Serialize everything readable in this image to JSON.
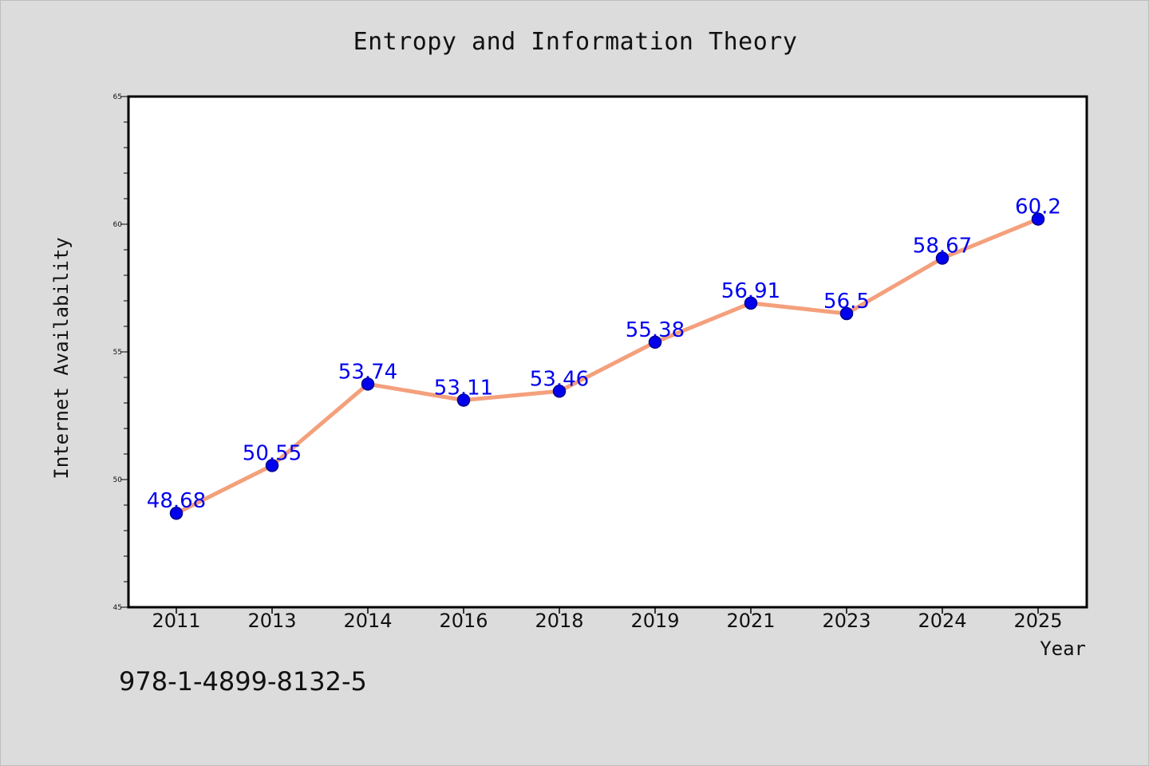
{
  "chart_data": {
    "type": "line",
    "title": "Entropy and Information Theory",
    "xlabel": "Year",
    "ylabel": "Internet Availability",
    "categories": [
      "2011",
      "2013",
      "2014",
      "2016",
      "2018",
      "2019",
      "2021",
      "2023",
      "2024",
      "2025"
    ],
    "series": [
      {
        "values": [
          48.68,
          50.55,
          53.74,
          53.11,
          53.46,
          55.38,
          56.91,
          56.5,
          58.67,
          60.2
        ]
      }
    ],
    "data_labels": [
      "48.68",
      "50.55",
      "53.74",
      "53.11",
      "53.46",
      "55.38",
      "56.91",
      "56.5",
      "58.67",
      "60.2"
    ],
    "ylim": [
      45,
      65
    ],
    "yticks": [
      "45",
      "50",
      "55",
      "60",
      "65"
    ],
    "grid": false,
    "legend": "none",
    "colors": {
      "line": "#f4a07c",
      "marker": "#0000ee",
      "marker_edge": "#00008b",
      "data_label": "#0000ee",
      "plot_background": "#ffffff",
      "page_background": "#dcdcdc"
    }
  },
  "footer": {
    "isbn": "978-1-4899-8132-5"
  }
}
